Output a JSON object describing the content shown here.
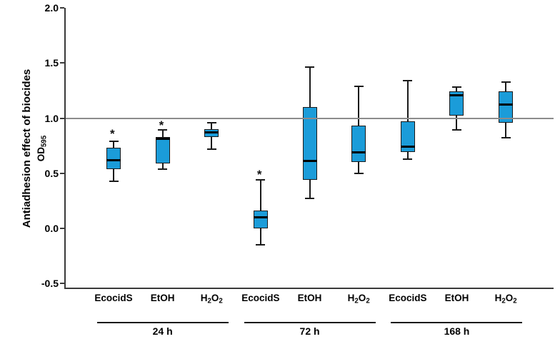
{
  "chart_data": {
    "type": "boxplot",
    "title": "",
    "ylabel_line1": "Antiadhesion effect of biocides",
    "ylabel_line2_prefix": "OD",
    "ylabel_line2_sub": "595",
    "ylim": [
      -0.5,
      2.0
    ],
    "yticks": [
      {
        "label": "2.0",
        "value": 2.0
      },
      {
        "label": "1.5",
        "value": 1.5
      },
      {
        "label": "1.0",
        "value": 1.0
      },
      {
        "label": "0.5",
        "value": 0.5
      },
      {
        "label": "0.0",
        "value": 0.0
      },
      {
        "label": "-0.5",
        "value": -0.5
      }
    ],
    "reference_line": 1.0,
    "significance_marker": "*",
    "legend": "none",
    "grid": "off",
    "colors": {
      "box_fill": "#1b9cd9",
      "box_border": "#1a1a1a",
      "median": "#000000",
      "reference_line": "#8c8c8c",
      "axis": "#3a3a3a",
      "text": "#000000"
    },
    "groups": [
      {
        "label": "24 h",
        "boxes": [
          {
            "category": "EcocidS",
            "category_parts": [
              {
                "t": "EcocidS"
              }
            ],
            "whisker_low": 0.43,
            "q1": 0.54,
            "median": 0.62,
            "q3": 0.73,
            "whisker_high": 0.79,
            "star": 0.86
          },
          {
            "category": "EtOH",
            "category_parts": [
              {
                "t": "EtOH"
              }
            ],
            "whisker_low": 0.54,
            "q1": 0.59,
            "median": 0.81,
            "q3": 0.83,
            "whisker_high": 0.89,
            "star": 0.94
          },
          {
            "category": "H2O2",
            "category_parts": [
              {
                "t": "H"
              },
              {
                "t": "2",
                "sub": true
              },
              {
                "t": "O"
              },
              {
                "t": "2",
                "sub": true
              }
            ],
            "whisker_low": 0.72,
            "q1": 0.83,
            "median": 0.87,
            "q3": 0.9,
            "whisker_high": 0.96,
            "star": null
          }
        ]
      },
      {
        "label": "72 h",
        "boxes": [
          {
            "category": "EcocidS",
            "category_parts": [
              {
                "t": "EcocidS"
              }
            ],
            "whisker_low": -0.15,
            "q1": 0.0,
            "median": 0.1,
            "q3": 0.16,
            "whisker_high": 0.44,
            "star": 0.49
          },
          {
            "category": "EtOH",
            "category_parts": [
              {
                "t": "EtOH"
              }
            ],
            "whisker_low": 0.27,
            "q1": 0.44,
            "median": 0.61,
            "q3": 1.1,
            "whisker_high": 1.46,
            "star": null
          },
          {
            "category": "H2O2",
            "category_parts": [
              {
                "t": "H"
              },
              {
                "t": "2",
                "sub": true
              },
              {
                "t": "O"
              },
              {
                "t": "2",
                "sub": true
              }
            ],
            "whisker_low": 0.5,
            "q1": 0.6,
            "median": 0.69,
            "q3": 0.93,
            "whisker_high": 1.29,
            "star": null
          }
        ]
      },
      {
        "label": "168 h",
        "boxes": [
          {
            "category": "EcocidS",
            "category_parts": [
              {
                "t": "EcocidS"
              }
            ],
            "whisker_low": 0.63,
            "q1": 0.69,
            "median": 0.74,
            "q3": 0.97,
            "whisker_high": 1.34,
            "star": null
          },
          {
            "category": "EtOH",
            "category_parts": [
              {
                "t": "EtOH"
              }
            ],
            "whisker_low": 0.89,
            "q1": 1.02,
            "median": 1.21,
            "q3": 1.24,
            "whisker_high": 1.28,
            "star": null
          },
          {
            "category": "H2O2",
            "category_parts": [
              {
                "t": "H"
              },
              {
                "t": "2",
                "sub": true
              },
              {
                "t": "O"
              },
              {
                "t": "2",
                "sub": true
              }
            ],
            "whisker_low": 0.82,
            "q1": 0.96,
            "median": 1.12,
            "q3": 1.24,
            "whisker_high": 1.33,
            "star": null
          }
        ]
      }
    ]
  }
}
